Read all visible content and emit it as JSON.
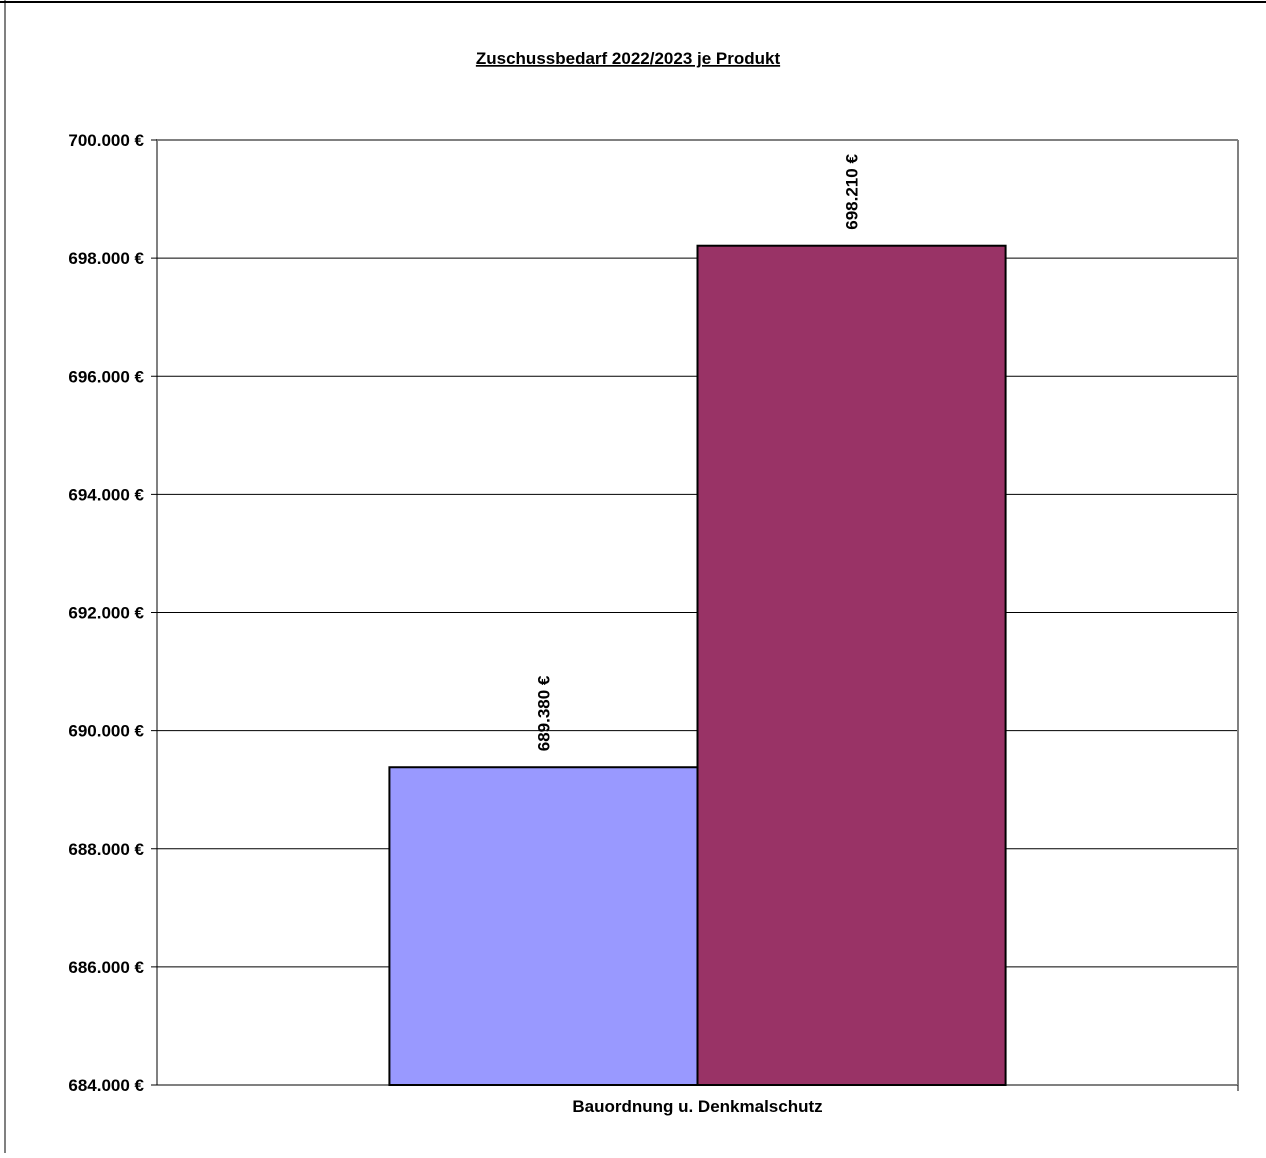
{
  "chart_data": {
    "type": "bar",
    "title": "Zuschussbedarf 2022/2023 je Produkt",
    "categories": [
      "Bauordnung u. Denkmalschutz"
    ],
    "series": [
      {
        "values": [
          689380
        ],
        "color": "#9999ff",
        "label": "689.380 €"
      },
      {
        "values": [
          698210
        ],
        "color": "#993366",
        "label": "698.210 €"
      }
    ],
    "ylim": [
      684000,
      700000
    ],
    "yticks": [
      684000,
      686000,
      688000,
      690000,
      692000,
      694000,
      696000,
      698000,
      700000
    ],
    "ytick_labels": [
      "684.000 €",
      "686.000 €",
      "688.000 €",
      "690.000 €",
      "692.000 €",
      "694.000 €",
      "696.000 €",
      "698.000 €",
      "700.000 €"
    ],
    "grid": true,
    "legend": "none",
    "plot_background": "#ffffff"
  }
}
